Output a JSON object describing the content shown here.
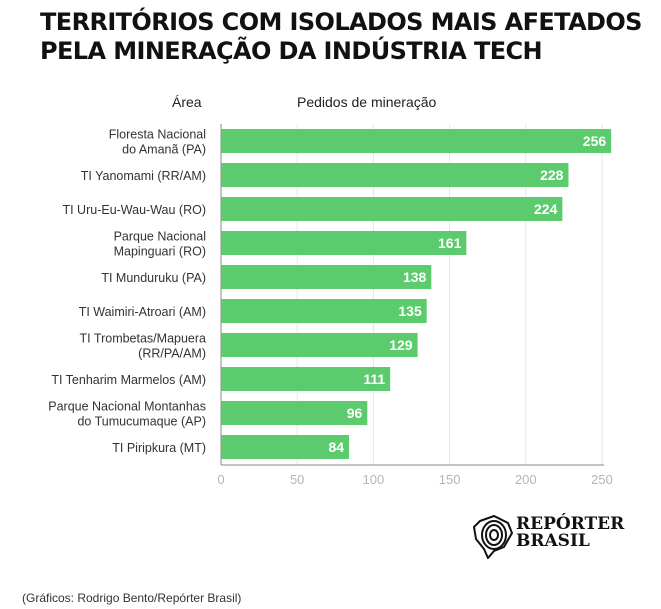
{
  "chart_data": {
    "type": "bar",
    "orientation": "horizontal",
    "title": "TERRITÓRIOS COM ISOLADOS MAIS AFETADOS PELA MINERAÇÃO DA INDÚSTRIA TECH",
    "title_lines": [
      "TERRITÓRIOS COM ISOLADOS MAIS AFETADOS",
      "PELA MINERAÇÃO DA INDÚSTRIA TECH"
    ],
    "category_header": "Área",
    "value_header": "Pedidos de mineração",
    "categories": [
      [
        "Floresta Nacional",
        "do Amanã (PA)"
      ],
      [
        "TI Yanomami (RR/AM)"
      ],
      [
        "TI Uru-Eu-Wau-Wau (RO)"
      ],
      [
        "Parque Nacional",
        "Mapinguari (RO)"
      ],
      [
        "TI Munduruku (PA)"
      ],
      [
        "TI Waimiri-Atroari (AM)"
      ],
      [
        "TI Trombetas/Mapuera",
        "(RR/PA/AM)"
      ],
      [
        "TI Tenharim Marmelos (AM)"
      ],
      [
        "Parque Nacional Montanhas",
        "do Tumucumaque (AP)"
      ],
      [
        "TI Piripkura (MT)"
      ]
    ],
    "values": [
      256,
      228,
      224,
      161,
      138,
      135,
      129,
      111,
      96,
      84
    ],
    "xlim": [
      0,
      256
    ],
    "xticks": [
      0,
      50,
      100,
      150,
      200,
      250
    ],
    "grid": true,
    "bar_color": "#5ccb6e",
    "label_color": "#ffffff"
  },
  "credit": "(Gráficos: Rodrigo Bento/Repórter Brasil)",
  "logo": {
    "line1": "REPÓRTER",
    "line2": "BRASIL"
  }
}
